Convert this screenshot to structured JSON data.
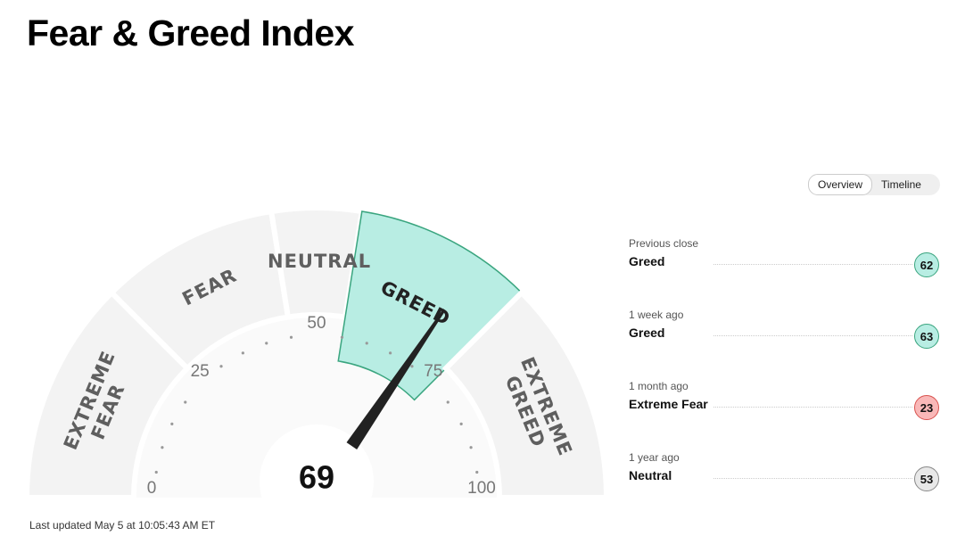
{
  "chart_data": {
    "type": "gauge",
    "title": "Fear & Greed Index",
    "value": 69,
    "xlim": [
      0,
      100
    ],
    "xticks": [
      0,
      25,
      50,
      75,
      100
    ],
    "segments": [
      {
        "label": "EXTREME FEAR",
        "from": 0,
        "to": 25
      },
      {
        "label": "FEAR",
        "from": 25,
        "to": 45
      },
      {
        "label": "NEUTRAL",
        "from": 45,
        "to": 55
      },
      {
        "label": "GREED",
        "from": 55,
        "to": 75
      },
      {
        "label": "EXTREME GREED",
        "from": 75,
        "to": 100
      }
    ],
    "color": "#f3f3f3",
    "highlight_color": "#b8ede3",
    "highlight_stroke": "#3aa57f"
  },
  "tabs": [
    "Overview",
    "Timeline"
  ],
  "history": [
    {
      "when": "Previous close",
      "state": "Greed",
      "value": 62,
      "color": "#b8ede3",
      "border": "#3aa57f"
    },
    {
      "when": "1 week ago",
      "state": "Greed",
      "value": 63,
      "color": "#b8ede3",
      "border": "#3aa57f"
    },
    {
      "when": "1 month ago",
      "state": "Extreme Fear",
      "value": 23,
      "color": "#f9b8b8",
      "border": "#d9534f"
    },
    {
      "when": "1 year ago",
      "state": "Neutral",
      "value": 53,
      "color": "#e8e8e8",
      "border": "#888888"
    }
  ],
  "footer": "Last updated May 5 at 10:05:43 AM ET"
}
